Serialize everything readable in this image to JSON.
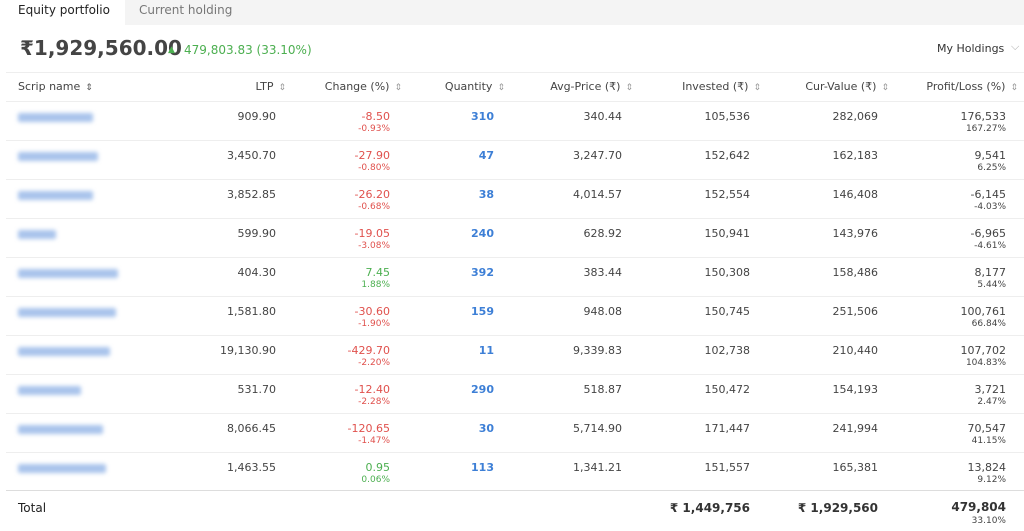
{
  "tabs": [
    "Equity portfolio",
    "Current holding"
  ],
  "summary": {
    "value": "₹1,929,560.00",
    "change": "479,803.83 (33.10%)",
    "dropdown": "My Holdings"
  },
  "table": {
    "headers": [
      "Scrip name",
      "LTP",
      "Change (%)",
      "Quantity",
      "Avg-Price (₹)",
      "Invested (₹)",
      "Cur-Value (₹)",
      "Profit/Loss (%)"
    ],
    "rows": [
      [
        "909.90",
        "-8.50",
        "-0.93%",
        "310",
        "340.44",
        "105,536",
        "282,069",
        "176,533",
        "167.27%"
      ],
      [
        "3,450.70",
        "-27.90",
        "-0.80%",
        "47",
        "3,247.70",
        "152,642",
        "162,183",
        "9,541",
        "6.25%"
      ],
      [
        "3,852.85",
        "-26.20",
        "-0.68%",
        "38",
        "4,014.57",
        "152,554",
        "146,408",
        "-6,145",
        "-4.03%"
      ],
      [
        "599.90",
        "-19.05",
        "-3.08%",
        "240",
        "628.92",
        "150,941",
        "143,976",
        "-6,965",
        "-4.61%"
      ],
      [
        "404.30",
        "7.45",
        "1.88%",
        "392",
        "383.44",
        "150,308",
        "158,486",
        "8,177",
        "5.44%"
      ],
      [
        "1,581.80",
        "-30.60",
        "-1.90%",
        "159",
        "948.08",
        "150,745",
        "251,506",
        "100,761",
        "66.84%"
      ],
      [
        "19,130.90",
        "-429.70",
        "-2.20%",
        "11",
        "9,339.83",
        "102,738",
        "210,440",
        "107,702",
        "104.83%"
      ],
      [
        "531.70",
        "-12.40",
        "-2.28%",
        "290",
        "518.87",
        "150,472",
        "154,193",
        "3,721",
        "2.47%"
      ],
      [
        "8,066.45",
        "-120.65",
        "-1.47%",
        "30",
        "5,714.90",
        "171,447",
        "241,994",
        "70,547",
        "41.15%"
      ],
      [
        "1,463.55",
        "0.95",
        "0.06%",
        "113",
        "1,341.21",
        "151,557",
        "165,381",
        "13,824",
        "9.12%"
      ]
    ],
    "total": {
      "label": "Total",
      "invested": "₹ 1,449,756",
      "cur_value": "₹ 1,929,560",
      "pl": "479,804",
      "pl_pct": "33.10%"
    }
  }
}
